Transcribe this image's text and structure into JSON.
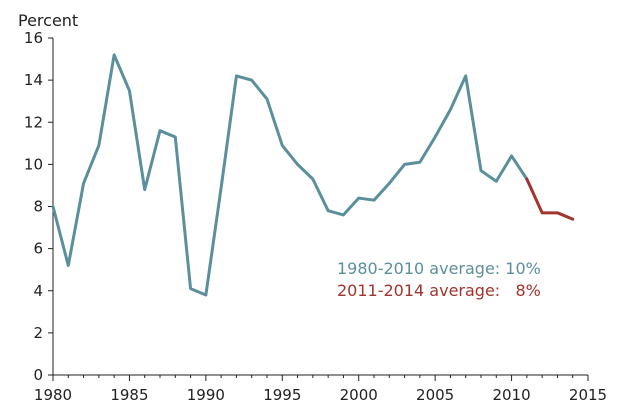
{
  "chart_data": {
    "type": "line",
    "unit_label": "Percent",
    "xlim": [
      1980,
      2015
    ],
    "ylim": [
      0,
      16
    ],
    "x_ticks": [
      "1980",
      "1985",
      "1990",
      "1995",
      "2000",
      "2005",
      "2010",
      "2015"
    ],
    "y_ticks": [
      "0",
      "2",
      "4",
      "6",
      "8",
      "10",
      "12",
      "14",
      "16"
    ],
    "grid": false,
    "series": [
      {
        "color": "#5b8f9c",
        "x": [
          1980,
          1981,
          1982,
          1983,
          1984,
          1985,
          1986,
          1987,
          1988,
          1989,
          1990,
          1991,
          1992,
          1993,
          1994,
          1995,
          1996,
          1997,
          1998,
          1999,
          2000,
          2001,
          2002,
          2003,
          2004,
          2005,
          2006,
          2007,
          2008,
          2009,
          2010,
          2011
        ],
        "values": [
          8.0,
          5.2,
          9.1,
          10.9,
          15.2,
          13.5,
          8.8,
          11.6,
          11.3,
          4.1,
          3.8,
          8.9,
          14.2,
          14.0,
          13.1,
          10.9,
          10.0,
          9.3,
          7.8,
          7.6,
          8.4,
          8.3,
          9.1,
          10.0,
          10.1,
          11.3,
          12.6,
          14.2,
          9.7,
          9.2,
          10.4,
          9.3
        ]
      },
      {
        "color": "#a3332d",
        "x": [
          2011,
          2012,
          2013,
          2014
        ],
        "values": [
          9.3,
          7.7,
          7.7,
          7.4
        ]
      }
    ],
    "annotations": [
      {
        "text": "1980-2010 average: 10%",
        "color": "#5b8f9c"
      },
      {
        "text": "2011-2014 average:   8%",
        "color": "#a3332d"
      }
    ]
  }
}
